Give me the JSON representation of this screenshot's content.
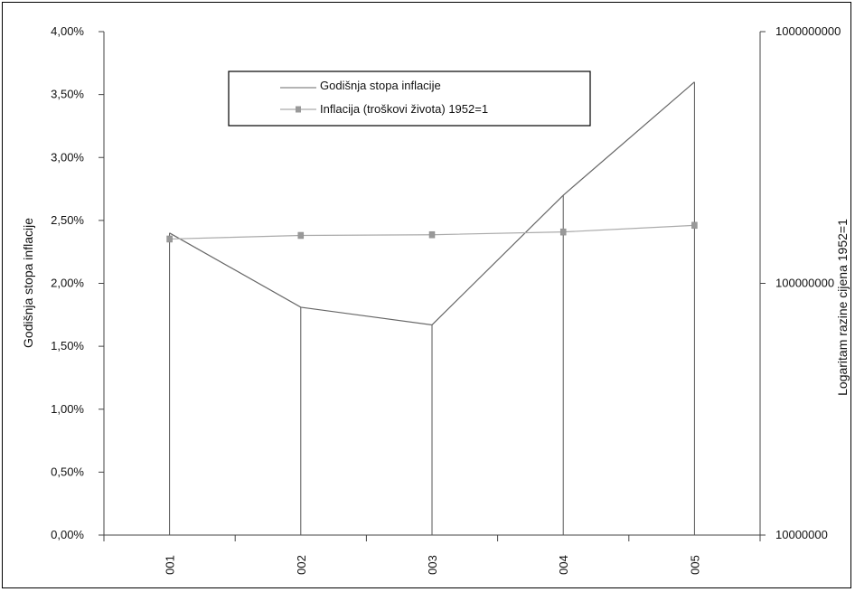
{
  "chart_data": {
    "type": "line",
    "categories": [
      "001",
      "002",
      "003",
      "004",
      "005"
    ],
    "series": [
      {
        "name": "Godišnja stopa inflacije",
        "axis": "left",
        "values": [
          0.024,
          0.0181,
          0.0167,
          0.027,
          0.036
        ],
        "color": "#888888",
        "marker": "none"
      },
      {
        "name": "Inflacija (troškovi života) 1952=1",
        "axis": "right",
        "values": [
          150000000,
          155000000,
          156000000,
          160000000,
          170000000
        ],
        "color": "#a0a0a0",
        "marker": "square"
      }
    ],
    "ylabel": "Godišnja stopa inflacije",
    "y2label": "Logaritam razine cijena 1952=1",
    "ylim": [
      0,
      0.04
    ],
    "y2lim": [
      10000000,
      1000000000
    ],
    "y2scale": "log",
    "y_ticks": [
      "0,00%",
      "0,50%",
      "1,00%",
      "1,50%",
      "2,00%",
      "2,50%",
      "3,00%",
      "3,50%",
      "4,00%"
    ],
    "y2_ticks": [
      "10000000",
      "100000000",
      "1000000000"
    ],
    "drop_lines": true,
    "grid": false,
    "legend": "top-center"
  }
}
